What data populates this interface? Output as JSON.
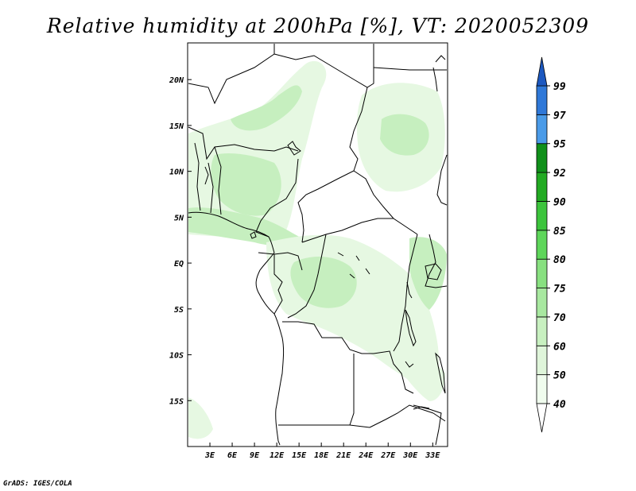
{
  "title": "Relative humidity at 200hPa [%], VT: 2020052309",
  "credit": "GrADS: IGES/COLA",
  "map": {
    "lon_range": [
      0,
      35
    ],
    "lat_range": [
      -20,
      24
    ],
    "x_ticks": [
      {
        "lon": 3,
        "label": "3E"
      },
      {
        "lon": 6,
        "label": "6E"
      },
      {
        "lon": 9,
        "label": "9E"
      },
      {
        "lon": 12,
        "label": "12E"
      },
      {
        "lon": 15,
        "label": "15E"
      },
      {
        "lon": 18,
        "label": "18E"
      },
      {
        "lon": 21,
        "label": "21E"
      },
      {
        "lon": 24,
        "label": "24E"
      },
      {
        "lon": 27,
        "label": "27E"
      },
      {
        "lon": 30,
        "label": "30E"
      },
      {
        "lon": 33,
        "label": "33E"
      }
    ],
    "y_ticks": [
      {
        "lat": 20,
        "label": "20N"
      },
      {
        "lat": 15,
        "label": "15N"
      },
      {
        "lat": 10,
        "label": "10N"
      },
      {
        "lat": 5,
        "label": "5N"
      },
      {
        "lat": 0,
        "label": "EQ"
      },
      {
        "lat": -5,
        "label": "5S"
      },
      {
        "lat": -10,
        "label": "10S"
      },
      {
        "lat": -15,
        "label": "15S"
      }
    ]
  },
  "colorbar": {
    "levels": [
      {
        "label": "40",
        "color": "#f0fcee"
      },
      {
        "label": "50",
        "color": "#dff5da"
      },
      {
        "label": "60",
        "color": "#c8f0c0"
      },
      {
        "label": "70",
        "color": "#a8e8a0"
      },
      {
        "label": "75",
        "color": "#88e080"
      },
      {
        "label": "80",
        "color": "#5ed65a"
      },
      {
        "label": "85",
        "color": "#3cc43c"
      },
      {
        "label": "90",
        "color": "#22aa22"
      },
      {
        "label": "92",
        "color": "#10901a"
      },
      {
        "label": "95",
        "color": "#4a9be8"
      },
      {
        "label": "97",
        "color": "#2f78d8"
      },
      {
        "label": "99",
        "color": "#1c58c0"
      }
    ],
    "low_color": "#ffffff"
  },
  "colors": {
    "land_line": "#000000",
    "fill_light": "#e6f8e2",
    "fill_mid": "#c6efbf"
  }
}
